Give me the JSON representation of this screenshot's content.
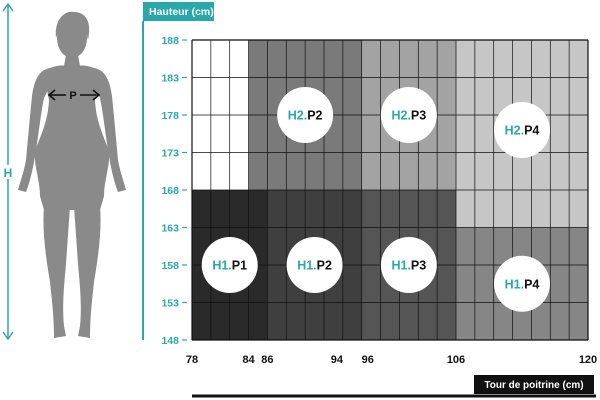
{
  "figure": {
    "height_marker": "H",
    "chest_marker": "P"
  },
  "chart_data": {
    "type": "heatmap",
    "title": "",
    "xlabel": "Tour de poitrine (cm)",
    "ylabel": "Hauteur (cm)",
    "xlim": [
      78,
      120
    ],
    "ylim": [
      148,
      188
    ],
    "x_ticks": [
      "78",
      "84",
      "86",
      "94",
      "96",
      "106",
      "120"
    ],
    "x_tick_values": [
      78,
      84,
      86,
      94,
      96,
      106,
      120
    ],
    "y_ticks": [
      "188",
      "183",
      "178",
      "173",
      "168",
      "163",
      "158",
      "153",
      "148"
    ],
    "y_tick_values": [
      188,
      183,
      178,
      173,
      168,
      163,
      158,
      153,
      148
    ],
    "grid": true,
    "zones": [
      {
        "h": "H1",
        "p": "P1",
        "x0": 78,
        "x1": 86,
        "y0": 148,
        "y1": 168,
        "color": "#2a2a2a"
      },
      {
        "h": "H1",
        "p": "P2",
        "x0": 86,
        "x1": 96,
        "y0": 148,
        "y1": 168,
        "color": "#3f3f3f"
      },
      {
        "h": "H1",
        "p": "P3",
        "x0": 96,
        "x1": 106,
        "y0": 148,
        "y1": 168,
        "color": "#555555"
      },
      {
        "h": "H1",
        "p": "P4",
        "x0": 106,
        "x1": 120,
        "y0": 148,
        "y1": 163,
        "color": "#868686"
      },
      {
        "h": "H2",
        "p": "P2",
        "x0": 84,
        "x1": 96,
        "y0": 168,
        "y1": 188,
        "color": "#7a7a7a"
      },
      {
        "h": "H2",
        "p": "P3",
        "x0": 96,
        "x1": 106,
        "y0": 168,
        "y1": 188,
        "color": "#a3a3a3"
      },
      {
        "h": "H2",
        "p": "P4",
        "x0": 106,
        "x1": 120,
        "y0": 163,
        "y1": 188,
        "color": "#c6c6c6"
      }
    ],
    "colors": {
      "accent": "#29a8ab",
      "ink": "#111111",
      "body": "#8a8a8a",
      "grid": "#111111"
    }
  }
}
